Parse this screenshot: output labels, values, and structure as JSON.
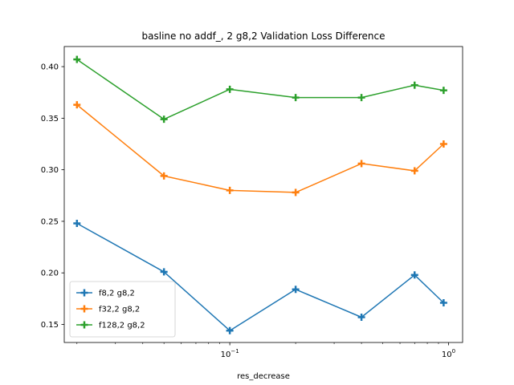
{
  "chart_data": {
    "type": "line",
    "title": "basline no addf_, 2 g8,2 Validation Loss Difference",
    "xlabel": "res_decrease",
    "ylabel": "",
    "xscale": "log",
    "xlim": [
      0.0175,
      1.16
    ],
    "ylim": [
      0.1325,
      0.4195
    ],
    "x_ticks": [
      {
        "value": 0.1,
        "base": "10",
        "exp": "−1"
      },
      {
        "value": 1,
        "base": "10",
        "exp": "0"
      }
    ],
    "y_ticks": [
      {
        "value": 0.15,
        "label": "0.15"
      },
      {
        "value": 0.2,
        "label": "0.20"
      },
      {
        "value": 0.25,
        "label": "0.25"
      },
      {
        "value": 0.3,
        "label": "0.30"
      },
      {
        "value": 0.35,
        "label": "0.35"
      },
      {
        "value": 0.4,
        "label": "0.40"
      }
    ],
    "x": [
      0.02,
      0.05,
      0.1,
      0.2,
      0.4,
      0.7,
      0.95
    ],
    "series": [
      {
        "name": "f8,2 g8,2",
        "color": "#1f77b4",
        "values": [
          0.248,
          0.201,
          0.144,
          0.184,
          0.157,
          0.198,
          0.171
        ]
      },
      {
        "name": "f32,2 g8,2",
        "color": "#ff7f0e",
        "values": [
          0.363,
          0.294,
          0.28,
          0.278,
          0.306,
          0.299,
          0.325
        ]
      },
      {
        "name": "f128,2 g8,2",
        "color": "#2ca02c",
        "values": [
          0.407,
          0.349,
          0.378,
          0.37,
          0.37,
          0.382,
          0.377
        ]
      }
    ],
    "marker": "plus",
    "grid": false,
    "legend_position": "lower-left"
  }
}
